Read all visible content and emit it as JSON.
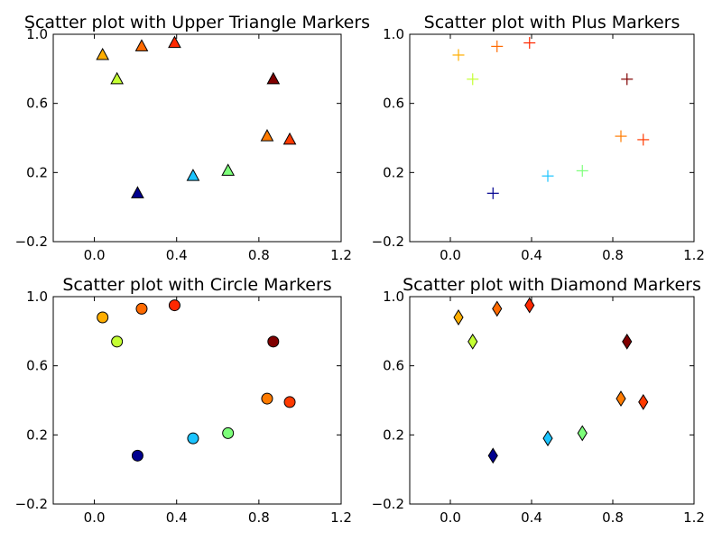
{
  "chart_data": [
    {
      "type": "scatter",
      "title": "Scatter plot with Upper Triangle Markers",
      "marker": "triangle-up",
      "xlim": [
        -0.2,
        1.2
      ],
      "ylim": [
        -0.2,
        1.0
      ],
      "xticks": [
        "0.0",
        "0.4",
        "0.8",
        "1.2"
      ],
      "yticks": [
        "−0.2",
        "0.2",
        "0.6",
        "1.0"
      ],
      "points": [
        {
          "x": 0.04,
          "y": 0.88,
          "color": "#ffae00"
        },
        {
          "x": 0.11,
          "y": 0.74,
          "color": "#c4ff33"
        },
        {
          "x": 0.23,
          "y": 0.93,
          "color": "#ff6a00"
        },
        {
          "x": 0.39,
          "y": 0.95,
          "color": "#ff2800"
        },
        {
          "x": 0.21,
          "y": 0.08,
          "color": "#00008f"
        },
        {
          "x": 0.48,
          "y": 0.18,
          "color": "#1cc4ff"
        },
        {
          "x": 0.65,
          "y": 0.21,
          "color": "#7dff7a"
        },
        {
          "x": 0.84,
          "y": 0.41,
          "color": "#ff7b00"
        },
        {
          "x": 0.87,
          "y": 0.74,
          "color": "#800000"
        },
        {
          "x": 0.95,
          "y": 0.39,
          "color": "#ff3a00"
        }
      ]
    },
    {
      "type": "scatter",
      "title": "Scatter plot with Plus Markers",
      "marker": "plus",
      "xlim": [
        -0.2,
        1.2
      ],
      "ylim": [
        -0.2,
        1.0
      ],
      "xticks": [
        "0.0",
        "0.4",
        "0.8",
        "1.2"
      ],
      "yticks": [
        "−0.2",
        "0.2",
        "0.6",
        "1.0"
      ],
      "points": [
        {
          "x": 0.04,
          "y": 0.88,
          "color": "#ffae00"
        },
        {
          "x": 0.11,
          "y": 0.74,
          "color": "#c4ff33"
        },
        {
          "x": 0.23,
          "y": 0.93,
          "color": "#ff6a00"
        },
        {
          "x": 0.39,
          "y": 0.95,
          "color": "#ff2800"
        },
        {
          "x": 0.21,
          "y": 0.08,
          "color": "#00008f"
        },
        {
          "x": 0.48,
          "y": 0.18,
          "color": "#1cc4ff"
        },
        {
          "x": 0.65,
          "y": 0.21,
          "color": "#7dff7a"
        },
        {
          "x": 0.84,
          "y": 0.41,
          "color": "#ff7b00"
        },
        {
          "x": 0.87,
          "y": 0.74,
          "color": "#800000"
        },
        {
          "x": 0.95,
          "y": 0.39,
          "color": "#ff3a00"
        }
      ]
    },
    {
      "type": "scatter",
      "title": "Scatter plot with Circle Markers",
      "marker": "circle",
      "xlim": [
        -0.2,
        1.2
      ],
      "ylim": [
        -0.2,
        1.0
      ],
      "xticks": [
        "0.0",
        "0.4",
        "0.8",
        "1.2"
      ],
      "yticks": [
        "−0.2",
        "0.2",
        "0.6",
        "1.0"
      ],
      "points": [
        {
          "x": 0.04,
          "y": 0.88,
          "color": "#ffae00"
        },
        {
          "x": 0.11,
          "y": 0.74,
          "color": "#c4ff33"
        },
        {
          "x": 0.23,
          "y": 0.93,
          "color": "#ff6a00"
        },
        {
          "x": 0.39,
          "y": 0.95,
          "color": "#ff2800"
        },
        {
          "x": 0.21,
          "y": 0.08,
          "color": "#00008f"
        },
        {
          "x": 0.48,
          "y": 0.18,
          "color": "#1cc4ff"
        },
        {
          "x": 0.65,
          "y": 0.21,
          "color": "#7dff7a"
        },
        {
          "x": 0.84,
          "y": 0.41,
          "color": "#ff7b00"
        },
        {
          "x": 0.87,
          "y": 0.74,
          "color": "#800000"
        },
        {
          "x": 0.95,
          "y": 0.39,
          "color": "#ff3a00"
        }
      ]
    },
    {
      "type": "scatter",
      "title": "Scatter plot with Diamond Markers",
      "marker": "diamond",
      "xlim": [
        -0.2,
        1.2
      ],
      "ylim": [
        -0.2,
        1.0
      ],
      "xticks": [
        "0.0",
        "0.4",
        "0.8",
        "1.2"
      ],
      "yticks": [
        "−0.2",
        "0.2",
        "0.6",
        "1.0"
      ],
      "points": [
        {
          "x": 0.04,
          "y": 0.88,
          "color": "#ffae00"
        },
        {
          "x": 0.11,
          "y": 0.74,
          "color": "#c4ff33"
        },
        {
          "x": 0.23,
          "y": 0.93,
          "color": "#ff6a00"
        },
        {
          "x": 0.39,
          "y": 0.95,
          "color": "#ff2800"
        },
        {
          "x": 0.21,
          "y": 0.08,
          "color": "#00008f"
        },
        {
          "x": 0.48,
          "y": 0.18,
          "color": "#1cc4ff"
        },
        {
          "x": 0.65,
          "y": 0.21,
          "color": "#7dff7a"
        },
        {
          "x": 0.84,
          "y": 0.41,
          "color": "#ff7b00"
        },
        {
          "x": 0.87,
          "y": 0.74,
          "color": "#800000"
        },
        {
          "x": 0.95,
          "y": 0.39,
          "color": "#ff3a00"
        }
      ]
    }
  ]
}
